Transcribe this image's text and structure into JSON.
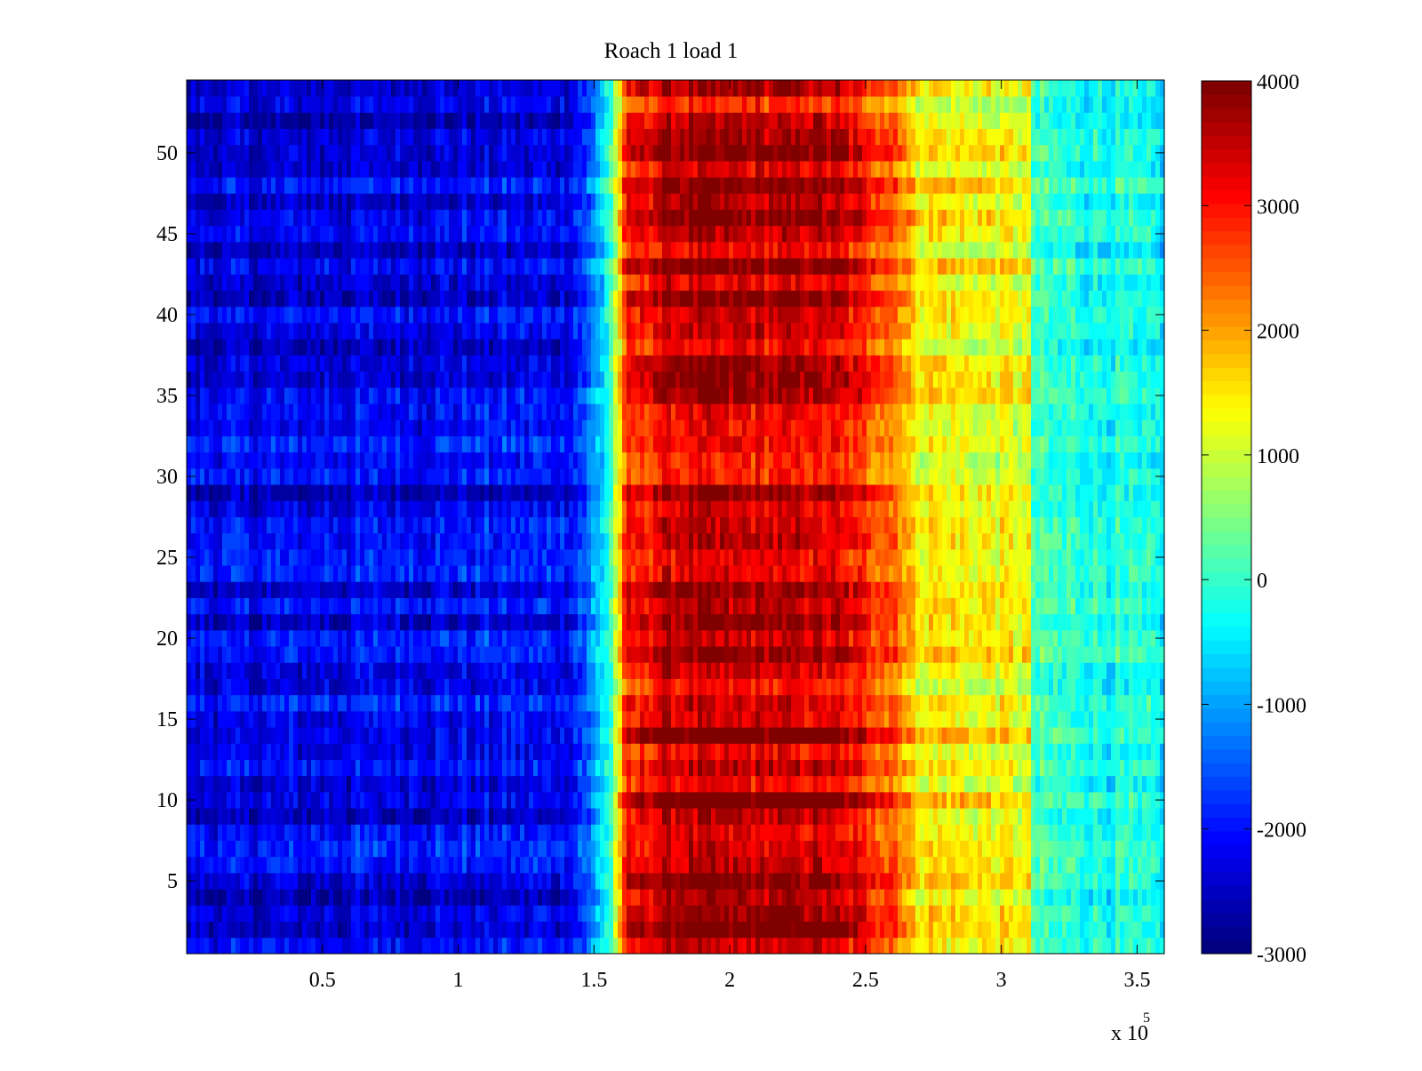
{
  "chart_data": {
    "type": "heatmap",
    "title": "Roach 1 load 1",
    "xlabel": "",
    "ylabel": "",
    "x_exponent_label": {
      "base": "x 10",
      "exponent": "5"
    },
    "xlim": [
      0,
      360000
    ],
    "ylim": [
      0.5,
      54.5
    ],
    "x_ticks": [
      50000,
      100000,
      150000,
      200000,
      250000,
      300000,
      350000
    ],
    "x_tick_labels": [
      "0.5",
      "1",
      "1.5",
      "2",
      "2.5",
      "3",
      "3.5"
    ],
    "y_ticks": [
      5,
      10,
      15,
      20,
      25,
      30,
      35,
      40,
      45,
      50
    ],
    "y_tick_labels": [
      "5",
      "10",
      "15",
      "20",
      "25",
      "30",
      "35",
      "40",
      "45",
      "50"
    ],
    "rows": 54,
    "colormap": "jet",
    "colorbar": {
      "range": [
        -3000,
        4000
      ],
      "ticks": [
        -3000,
        -2000,
        -1000,
        0,
        1000,
        2000,
        3000,
        4000
      ],
      "tick_labels": [
        "-3000",
        "-2000",
        "-1000",
        "0",
        "1000",
        "2000",
        "3000",
        "4000"
      ],
      "levels": 64
    },
    "profile": {
      "description_x": [
        0,
        140000,
        148000,
        156000,
        162000,
        178000,
        235000,
        262000,
        268000,
        310000,
        312000,
        360000
      ],
      "value": [
        -2300,
        -2100,
        -1500,
        0,
        2800,
        3500,
        3400,
        2400,
        1500,
        1200,
        0,
        -400
      ]
    },
    "grid": false,
    "legend": "colorbar-right"
  }
}
